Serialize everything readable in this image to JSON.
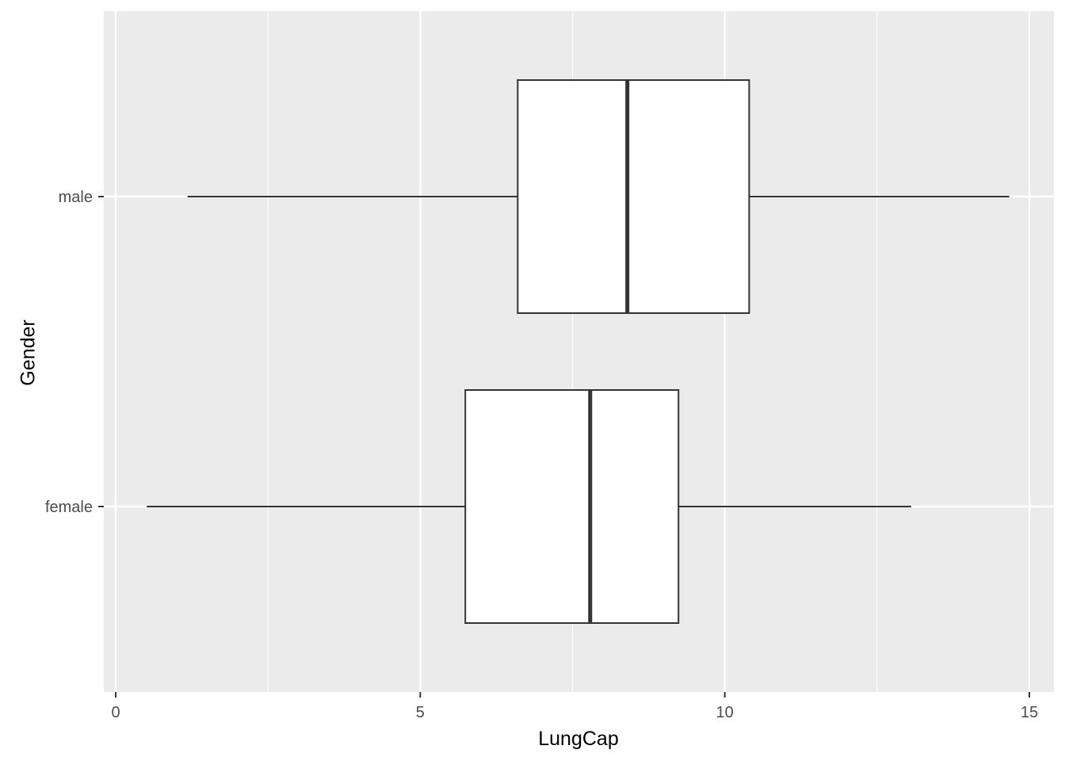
{
  "chart_data": {
    "type": "boxplot",
    "orientation": "horizontal",
    "xlabel": "LungCap",
    "ylabel": "Gender",
    "xlim": [
      -0.2,
      15.4
    ],
    "x_ticks": [
      0,
      5,
      10,
      15
    ],
    "x_tick_labels": [
      "0",
      "5",
      "10",
      "15"
    ],
    "categories": [
      "male",
      "female"
    ],
    "series": [
      {
        "category": "male",
        "whisker_low": 1.18,
        "q1": 6.6,
        "median": 8.4,
        "q3": 10.4,
        "whisker_high": 14.67
      },
      {
        "category": "female",
        "whisker_low": 0.51,
        "q1": 5.74,
        "median": 7.79,
        "q3": 9.24,
        "whisker_high": 13.06
      }
    ],
    "grid": true,
    "legend": "none",
    "colors": {
      "panel_background": "#ebebeb",
      "grid": "#ffffff",
      "box_fill": "#ffffff",
      "box_stroke": "#333333",
      "tick": "#333333"
    }
  }
}
